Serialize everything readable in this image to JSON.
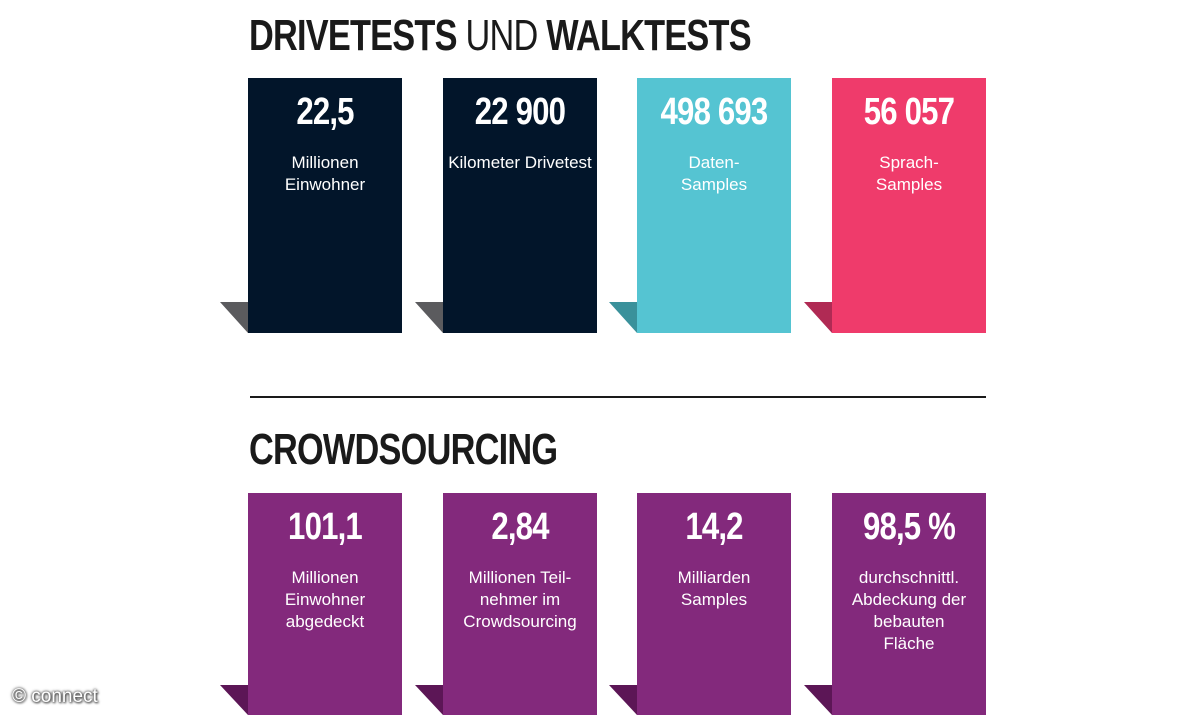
{
  "section1": {
    "title_bold_1": "DRIVETESTS",
    "title_light": " UND ",
    "title_bold_2": "WALKTESTS",
    "cards": [
      {
        "value": "22,5",
        "label": "Millionen Einwohner",
        "color": "#02152a"
      },
      {
        "value": "22 900",
        "label": "Kilometer Drivetest",
        "color": "#02152a"
      },
      {
        "value": "498 693",
        "label": "Daten-\nSamples",
        "color": "#55c4d2"
      },
      {
        "value": "56 057",
        "label": "Sprach-\nSamples",
        "color": "#ef3b6b"
      }
    ]
  },
  "section2": {
    "title": "CROWDSOURCING",
    "cards": [
      {
        "value": "101,1",
        "label": "Millionen Einwohner abgedeckt",
        "color": "#83297c"
      },
      {
        "value": "2,84",
        "label": "Millionen Teil-\nnehmer im Crowdsourcing",
        "color": "#83297c"
      },
      {
        "value": "14,2",
        "label": "Milliarden Samples",
        "color": "#83297c"
      },
      {
        "value": "98,5 %",
        "label": "durchschnittl. Abdeckung der bebauten Fläche",
        "color": "#83297c"
      }
    ]
  },
  "watermark": "© connect"
}
